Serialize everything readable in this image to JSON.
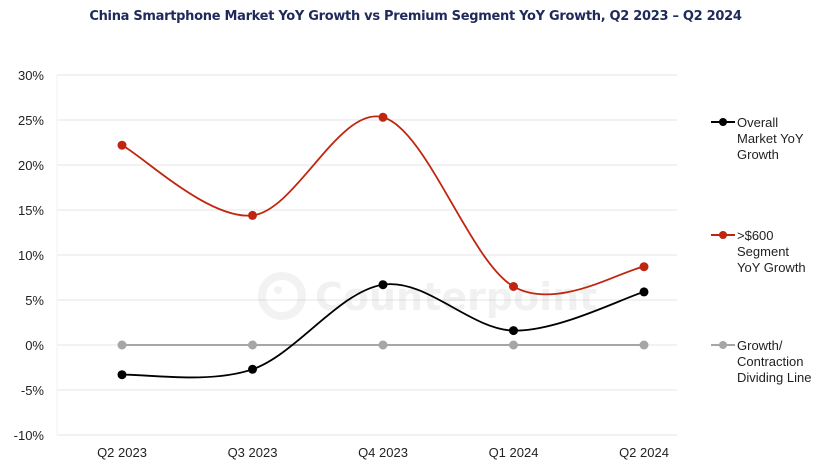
{
  "chart_data": {
    "type": "line",
    "title": "China Smartphone Market YoY Growth vs Premium Segment YoY Growth, Q2 2023 – Q2 2024",
    "xlabel": "",
    "ylabel": "",
    "categories": [
      "Q2 2023",
      "Q3 2023",
      "Q4 2023",
      "Q1 2024",
      "Q2 2024"
    ],
    "y_ticks": [
      "30%",
      "25%",
      "20%",
      "15%",
      "10%",
      "5%",
      "0%",
      "-5%",
      "-10%"
    ],
    "ylim": [
      -10,
      30
    ],
    "y_step": 5,
    "grid": true,
    "smooth": true,
    "legend_position": "right",
    "series": [
      {
        "name": "Overall Market YoY Growth",
        "legend_lines": [
          "Overall",
          "Market YoY",
          "Growth"
        ],
        "color": "#000000",
        "values": [
          -3.3,
          -2.7,
          6.7,
          1.6,
          5.9
        ]
      },
      {
        "name": ">$600 Segment YoY Growth",
        "legend_lines": [
          ">$600",
          "Segment",
          "YoY Growth"
        ],
        "color": "#c0260f",
        "values": [
          22.2,
          14.4,
          25.3,
          6.5,
          8.7
        ]
      },
      {
        "name": "Growth/Contraction Dividing Line",
        "legend_lines": [
          "Growth/",
          "Contraction",
          "Dividing Line"
        ],
        "color": "#a6a6a6",
        "values": [
          0,
          0,
          0,
          0,
          0
        ]
      }
    ],
    "watermark": "Counterpoint"
  }
}
